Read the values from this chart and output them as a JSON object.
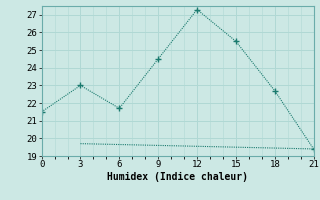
{
  "line1_x": [
    0,
    3,
    6,
    9,
    12,
    15,
    18,
    21
  ],
  "line1_y": [
    21.5,
    23.0,
    21.7,
    24.5,
    27.3,
    25.5,
    22.7,
    19.4
  ],
  "line2_x": [
    3,
    9,
    15,
    21
  ],
  "line2_y": [
    19.7,
    19.6,
    19.5,
    19.4
  ],
  "line_color": "#1a7a6e",
  "bg_color": "#cce8e4",
  "grid_color": "#b0d8d4",
  "xlabel": "Humidex (Indice chaleur)",
  "xlim": [
    0,
    21
  ],
  "ylim": [
    19,
    27.5
  ],
  "xticks": [
    0,
    3,
    6,
    9,
    12,
    15,
    18,
    21
  ],
  "yticks": [
    19,
    20,
    21,
    22,
    23,
    24,
    25,
    26,
    27
  ],
  "font_family": "monospace"
}
